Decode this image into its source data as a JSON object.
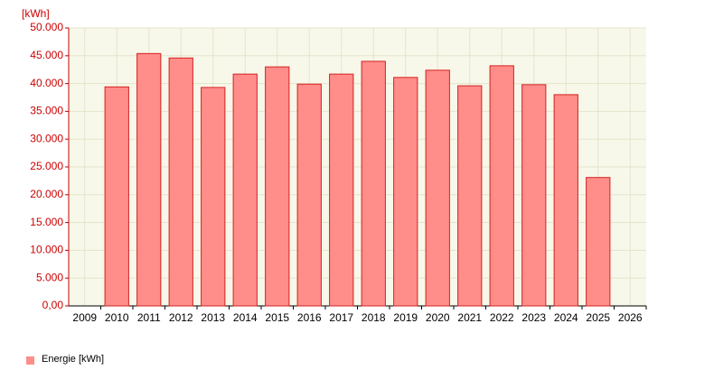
{
  "chart_data": {
    "type": "bar",
    "y_unit": "[kWh]",
    "categories": [
      "2009",
      "2010",
      "2011",
      "2012",
      "2013",
      "2014",
      "2015",
      "2016",
      "2017",
      "2018",
      "2019",
      "2020",
      "2021",
      "2022",
      "2023",
      "2024",
      "2025",
      "2026"
    ],
    "series": [
      {
        "name": "Energie [kWh]",
        "color": "#ff8e8a",
        "values": [
          null,
          39400,
          45400,
          44600,
          39300,
          41700,
          43000,
          39900,
          41700,
          44000,
          41100,
          42400,
          39600,
          43200,
          39800,
          38000,
          23100,
          null
        ]
      }
    ],
    "ylim": [
      0,
      50000
    ],
    "yticks": [
      {
        "value": 0,
        "label": "0,00"
      },
      {
        "value": 5000,
        "label": "5.000"
      },
      {
        "value": 10000,
        "label": "10.000"
      },
      {
        "value": 15000,
        "label": "15.000"
      },
      {
        "value": 20000,
        "label": "20.000"
      },
      {
        "value": 25000,
        "label": "25.000"
      },
      {
        "value": 30000,
        "label": "30.000"
      },
      {
        "value": 35000,
        "label": "35.000"
      },
      {
        "value": 40000,
        "label": "40.000"
      },
      {
        "value": 45000,
        "label": "45.000"
      },
      {
        "value": 50000,
        "label": "50.000"
      }
    ],
    "grid": true
  }
}
